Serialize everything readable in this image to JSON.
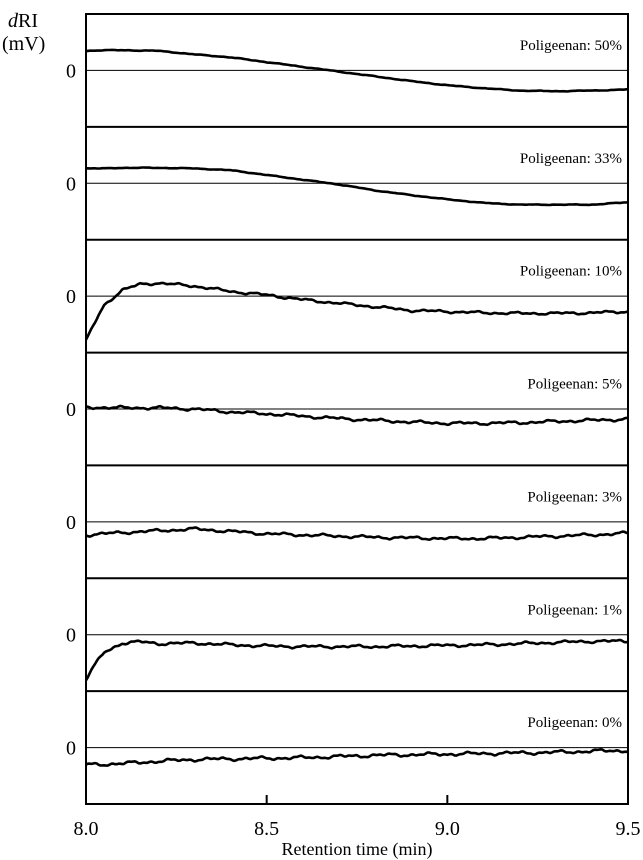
{
  "chart_data": {
    "type": "line",
    "xlabel": "Retention time (min)",
    "ylabel": {
      "prefix": "d",
      "main": "RI",
      "unit": "(mV)"
    },
    "xlim": [
      8.0,
      9.5
    ],
    "xticks": [
      {
        "value": 8.0,
        "label": "8.0"
      },
      {
        "value": 8.5,
        "label": "8.5"
      },
      {
        "value": 9.0,
        "label": "9.0"
      },
      {
        "value": 9.5,
        "label": "9.5"
      }
    ],
    "zero_label": "0",
    "series": [
      {
        "name": "Poligeenan: 50%",
        "points": [
          [
            8.0,
            0.33
          ],
          [
            8.05,
            0.34
          ],
          [
            8.1,
            0.34
          ],
          [
            8.2,
            0.33
          ],
          [
            8.3,
            0.27
          ],
          [
            8.4,
            0.22
          ],
          [
            8.5,
            0.14
          ],
          [
            8.6,
            0.06
          ],
          [
            8.7,
            -0.02
          ],
          [
            8.8,
            -0.1
          ],
          [
            8.9,
            -0.18
          ],
          [
            9.0,
            -0.25
          ],
          [
            9.1,
            -0.3
          ],
          [
            9.2,
            -0.34
          ],
          [
            9.3,
            -0.35
          ],
          [
            9.4,
            -0.34
          ],
          [
            9.5,
            -0.32
          ]
        ]
      },
      {
        "name": "Poligeenan: 33%",
        "points": [
          [
            8.0,
            0.25
          ],
          [
            8.05,
            0.25
          ],
          [
            8.1,
            0.26
          ],
          [
            8.2,
            0.26
          ],
          [
            8.3,
            0.25
          ],
          [
            8.4,
            0.22
          ],
          [
            8.5,
            0.14
          ],
          [
            8.6,
            0.06
          ],
          [
            8.7,
            -0.02
          ],
          [
            8.8,
            -0.12
          ],
          [
            8.9,
            -0.2
          ],
          [
            9.0,
            -0.27
          ],
          [
            9.1,
            -0.33
          ],
          [
            9.2,
            -0.36
          ],
          [
            9.3,
            -0.36
          ],
          [
            9.4,
            -0.36
          ],
          [
            9.5,
            -0.32
          ]
        ]
      },
      {
        "name": "Poligeenan: 10%",
        "points": [
          [
            8.0,
            -0.75
          ],
          [
            8.02,
            -0.5
          ],
          [
            8.05,
            -0.15
          ],
          [
            8.1,
            0.1
          ],
          [
            8.15,
            0.2
          ],
          [
            8.2,
            0.22
          ],
          [
            8.3,
            0.17
          ],
          [
            8.4,
            0.08
          ],
          [
            8.5,
            0.02
          ],
          [
            8.6,
            -0.06
          ],
          [
            8.7,
            -0.12
          ],
          [
            8.8,
            -0.18
          ],
          [
            8.9,
            -0.24
          ],
          [
            9.0,
            -0.26
          ],
          [
            9.1,
            -0.28
          ],
          [
            9.2,
            -0.29
          ],
          [
            9.3,
            -0.29
          ],
          [
            9.4,
            -0.28
          ],
          [
            9.5,
            -0.26
          ]
        ]
      },
      {
        "name": "Poligeenan: 5%",
        "points": [
          [
            8.0,
            0.03
          ],
          [
            8.1,
            0.02
          ],
          [
            8.2,
            0.02
          ],
          [
            8.3,
            0.0
          ],
          [
            8.4,
            -0.05
          ],
          [
            8.5,
            -0.08
          ],
          [
            8.6,
            -0.12
          ],
          [
            8.7,
            -0.16
          ],
          [
            8.8,
            -0.19
          ],
          [
            8.9,
            -0.22
          ],
          [
            9.0,
            -0.24
          ],
          [
            9.1,
            -0.24
          ],
          [
            9.2,
            -0.23
          ],
          [
            9.3,
            -0.21
          ],
          [
            9.4,
            -0.19
          ],
          [
            9.5,
            -0.17
          ]
        ]
      },
      {
        "name": "Poligeenan: 3%",
        "points": [
          [
            8.0,
            -0.22
          ],
          [
            8.1,
            -0.18
          ],
          [
            8.2,
            -0.15
          ],
          [
            8.3,
            -0.12
          ],
          [
            8.4,
            -0.16
          ],
          [
            8.5,
            -0.2
          ],
          [
            8.6,
            -0.22
          ],
          [
            8.7,
            -0.24
          ],
          [
            8.8,
            -0.26
          ],
          [
            8.9,
            -0.27
          ],
          [
            9.0,
            -0.28
          ],
          [
            9.1,
            -0.28
          ],
          [
            9.2,
            -0.26
          ],
          [
            9.3,
            -0.24
          ],
          [
            9.4,
            -0.22
          ],
          [
            9.5,
            -0.19
          ]
        ]
      },
      {
        "name": "Poligeenan: 1%",
        "points": [
          [
            8.0,
            -0.75
          ],
          [
            8.02,
            -0.55
          ],
          [
            8.05,
            -0.3
          ],
          [
            8.1,
            -0.14
          ],
          [
            8.15,
            -0.12
          ],
          [
            8.2,
            -0.15
          ],
          [
            8.3,
            -0.14
          ],
          [
            8.4,
            -0.17
          ],
          [
            8.5,
            -0.19
          ],
          [
            8.6,
            -0.2
          ],
          [
            8.7,
            -0.2
          ],
          [
            8.8,
            -0.2
          ],
          [
            8.9,
            -0.19
          ],
          [
            9.0,
            -0.18
          ],
          [
            9.1,
            -0.17
          ],
          [
            9.2,
            -0.15
          ],
          [
            9.3,
            -0.13
          ],
          [
            9.4,
            -0.11
          ],
          [
            9.5,
            -0.11
          ]
        ]
      },
      {
        "name": "Poligeenan: 0%",
        "points": [
          [
            8.0,
            -0.29
          ],
          [
            8.1,
            -0.27
          ],
          [
            8.2,
            -0.23
          ],
          [
            8.3,
            -0.2
          ],
          [
            8.4,
            -0.19
          ],
          [
            8.5,
            -0.18
          ],
          [
            8.6,
            -0.17
          ],
          [
            8.7,
            -0.15
          ],
          [
            8.8,
            -0.13
          ],
          [
            8.9,
            -0.12
          ],
          [
            9.0,
            -0.11
          ],
          [
            9.1,
            -0.1
          ],
          [
            9.2,
            -0.09
          ],
          [
            9.3,
            -0.08
          ],
          [
            9.4,
            -0.06
          ],
          [
            9.5,
            -0.05
          ]
        ]
      }
    ]
  }
}
